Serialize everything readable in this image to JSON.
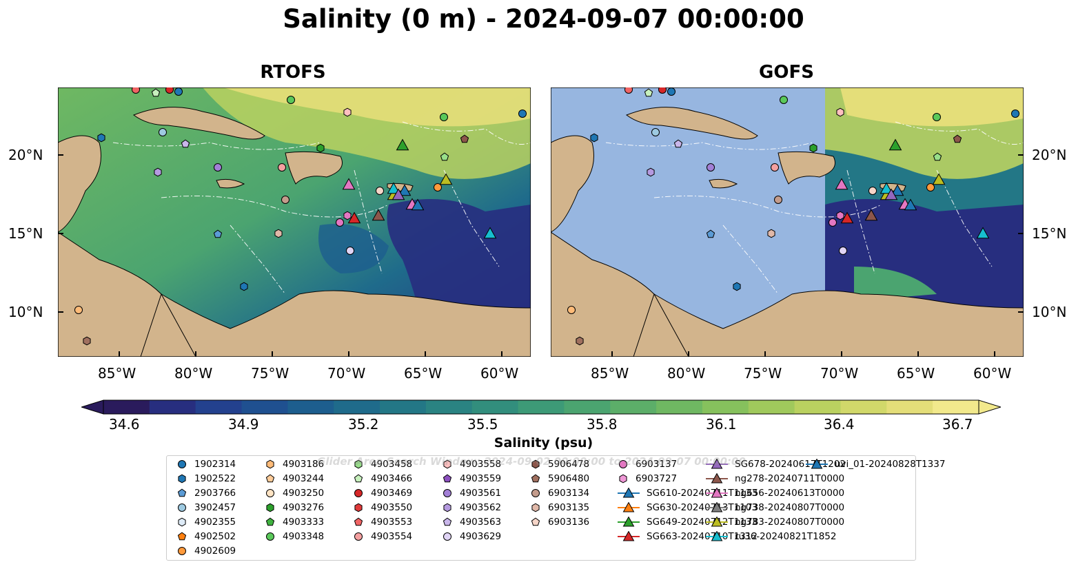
{
  "title": "Salinity (0 m) - 2024-09-07 00:00:00",
  "panels": [
    {
      "name": "RTOFS"
    },
    {
      "name": "GOFS"
    }
  ],
  "lat_labels": [
    "20°N",
    "15°N",
    "10°N"
  ],
  "lon_labels": [
    "85°W",
    "80°W",
    "75°W",
    "70°W",
    "65°W",
    "60°W"
  ],
  "colorbar": {
    "ticks": [
      "34.6",
      "34.9",
      "35.2",
      "35.5",
      "35.8",
      "36.1",
      "36.4",
      "36.7"
    ],
    "label": "Salinity (psu)",
    "colors": [
      "#2a1b5c",
      "#272e7f",
      "#23418e",
      "#1f5090",
      "#1d5e8e",
      "#1f6b8b",
      "#237786",
      "#2a8382",
      "#328e7d",
      "#3d9a77",
      "#4ba470",
      "#5cae69",
      "#6fb862",
      "#86c15d",
      "#a0c95c",
      "#bad160",
      "#d1d86a",
      "#e4de79",
      "#f2e98c"
    ]
  },
  "watermark": "Glider Area Search Window: 2024-09-02 00:00:00 to 2024-09-07 00:00:00",
  "legend": [
    {
      "label": "1902314",
      "shape": "circle",
      "color": "#1f77b4"
    },
    {
      "label": "1902522",
      "shape": "hexagon",
      "color": "#1f77b4"
    },
    {
      "label": "2903766",
      "shape": "pentagon",
      "color": "#5b9bd5"
    },
    {
      "label": "3902457",
      "shape": "circle",
      "color": "#9ecae1"
    },
    {
      "label": "4902355",
      "shape": "hexagon",
      "color": "#deebf7"
    },
    {
      "label": "4902502",
      "shape": "pentagon",
      "color": "#ff7f0e"
    },
    {
      "label": "4902609",
      "shape": "circle",
      "color": "#ff9a3c"
    },
    {
      "label": "4903186",
      "shape": "hexagon",
      "color": "#ffbb78"
    },
    {
      "label": "4903244",
      "shape": "pentagon",
      "color": "#ffcc99"
    },
    {
      "label": "4903250",
      "shape": "circle",
      "color": "#ffe4c4"
    },
    {
      "label": "4903276",
      "shape": "hexagon",
      "color": "#2ca02c"
    },
    {
      "label": "4903333",
      "shape": "pentagon",
      "color": "#3fb23f"
    },
    {
      "label": "4903348",
      "shape": "circle",
      "color": "#5ac85a"
    },
    {
      "label": "4903458",
      "shape": "hexagon",
      "color": "#98df8a"
    },
    {
      "label": "4903466",
      "shape": "pentagon",
      "color": "#c7f0bd"
    },
    {
      "label": "4903469",
      "shape": "circle",
      "color": "#d62728"
    },
    {
      "label": "4903550",
      "shape": "hexagon",
      "color": "#e03a3a"
    },
    {
      "label": "4903553",
      "shape": "pentagon",
      "color": "#f06464"
    },
    {
      "label": "4903554",
      "shape": "circle",
      "color": "#f4a0a0"
    },
    {
      "label": "4903558",
      "shape": "hexagon",
      "color": "#ffc0c0"
    },
    {
      "label": "4903559",
      "shape": "pentagon",
      "color": "#8c4fbf"
    },
    {
      "label": "4903561",
      "shape": "circle",
      "color": "#a27fd6"
    },
    {
      "label": "4903562",
      "shape": "hexagon",
      "color": "#b59ae0"
    },
    {
      "label": "4903563",
      "shape": "pentagon",
      "color": "#c9b6ea"
    },
    {
      "label": "4903629",
      "shape": "circle",
      "color": "#e0d4f5"
    },
    {
      "label": "5906478",
      "shape": "hexagon",
      "color": "#8c564b"
    },
    {
      "label": "5906480",
      "shape": "pentagon",
      "color": "#a0705f"
    },
    {
      "label": "6903134",
      "shape": "circle",
      "color": "#c49c8c"
    },
    {
      "label": "6903135",
      "shape": "hexagon",
      "color": "#e0b8a8"
    },
    {
      "label": "6903136",
      "shape": "pentagon",
      "color": "#f5d5c8"
    },
    {
      "label": "6903137",
      "shape": "circle",
      "color": "#e377c2"
    },
    {
      "label": "6903727",
      "shape": "hexagon",
      "color": "#ef98d6"
    },
    {
      "label": "SG610-20240711T1133",
      "shape": "triangle",
      "color": "#1f77b4"
    },
    {
      "label": "SG630-20240713T1103",
      "shape": "triangle",
      "color": "#ff7f0e"
    },
    {
      "label": "SG649-20240712T1133",
      "shape": "triangle",
      "color": "#2ca02c"
    },
    {
      "label": "SG663-20240710T1312",
      "shape": "triangle",
      "color": "#d62728"
    },
    {
      "label": "SG678-20240617T1202",
      "shape": "triangle",
      "color": "#9467bd"
    },
    {
      "label": "ng278-20240711T0000",
      "shape": "triangle",
      "color": "#8c564b"
    },
    {
      "label": "ng656-20240613T0000",
      "shape": "triangle",
      "color": "#e377c2"
    },
    {
      "label": "ng738-20240807T0000",
      "shape": "triangle",
      "color": "#7f7f7f"
    },
    {
      "label": "ng783-20240807T0000",
      "shape": "triangle",
      "color": "#bcbd22"
    },
    {
      "label": "ru36-20240821T1852",
      "shape": "triangle",
      "color": "#17becf"
    },
    {
      "label": "uvi_01-20240828T1337",
      "shape": "triangle",
      "color": "#1f77b4"
    }
  ]
}
